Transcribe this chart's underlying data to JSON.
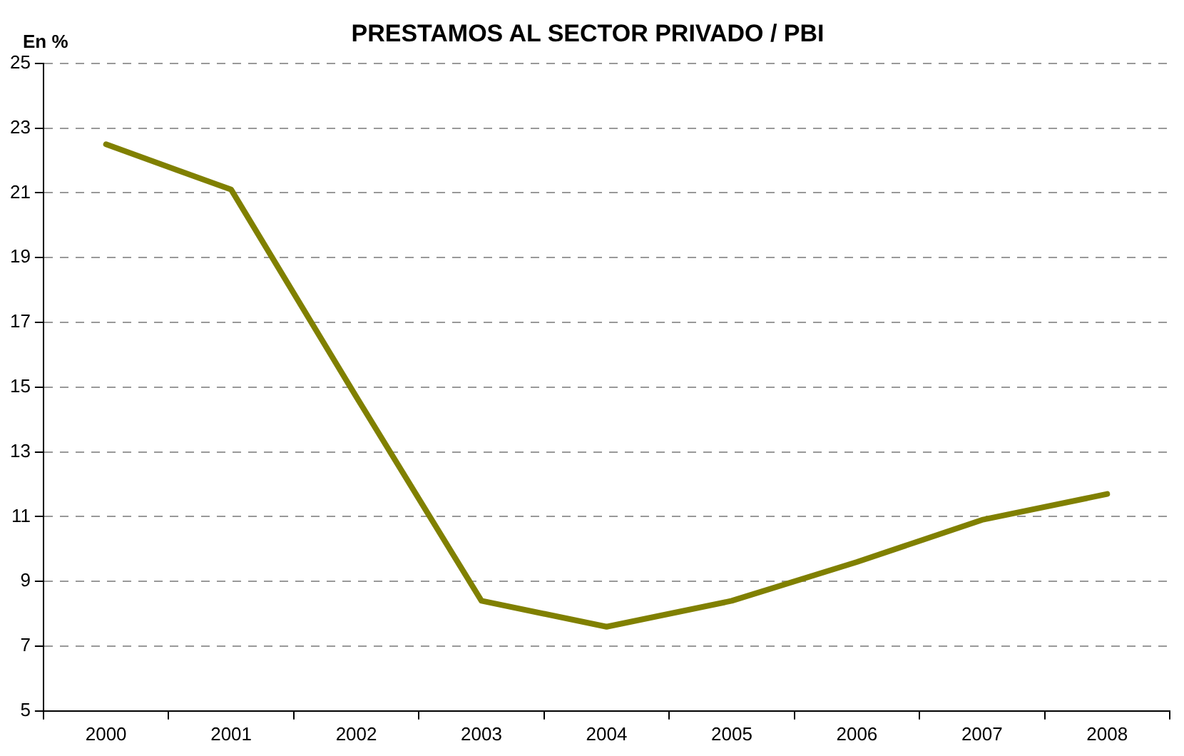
{
  "chart_data": {
    "type": "line",
    "title": "PRESTAMOS AL SECTOR PRIVADO / PBI",
    "ylabel": "En %",
    "categories": [
      "2000",
      "2001",
      "2002",
      "2003",
      "2004",
      "2005",
      "2006",
      "2007",
      "2008"
    ],
    "series": [
      {
        "color": "#808000",
        "values": [
          22.5,
          21.1,
          14.7,
          8.4,
          7.6,
          8.4,
          9.6,
          10.9,
          11.7
        ]
      }
    ],
    "ylim": [
      5,
      25
    ],
    "yticks": [
      5,
      7,
      9,
      11,
      13,
      15,
      17,
      19,
      21,
      23,
      25
    ],
    "grid": "y",
    "legend": false,
    "marker": "none",
    "line_style": "solid"
  }
}
